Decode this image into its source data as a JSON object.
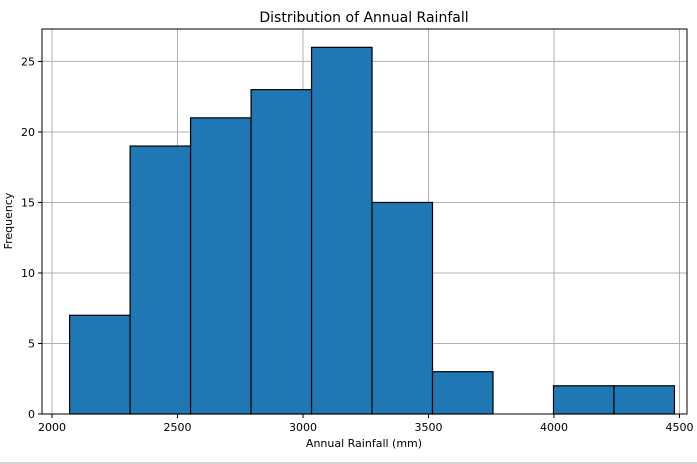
{
  "chart_data": {
    "type": "bar",
    "title": "Distribution of Annual Rainfall",
    "xlabel": "Annual Rainfall (mm)",
    "ylabel": "Frequency",
    "bin_edges": [
      2070,
      2311,
      2552,
      2793,
      3034,
      3275,
      3516,
      3757,
      3998,
      4239,
      4480
    ],
    "values": [
      7,
      19,
      21,
      23,
      26,
      15,
      3,
      0,
      2,
      2
    ],
    "xlim": [
      1960,
      4530
    ],
    "ylim": [
      0,
      27.3
    ],
    "xticks": [
      2000,
      2500,
      3000,
      3500,
      4000,
      4500
    ],
    "yticks": [
      0,
      5,
      10,
      15,
      20,
      25
    ],
    "grid": true,
    "bar_color": "#1f77b4",
    "edge_color": "#000000"
  }
}
